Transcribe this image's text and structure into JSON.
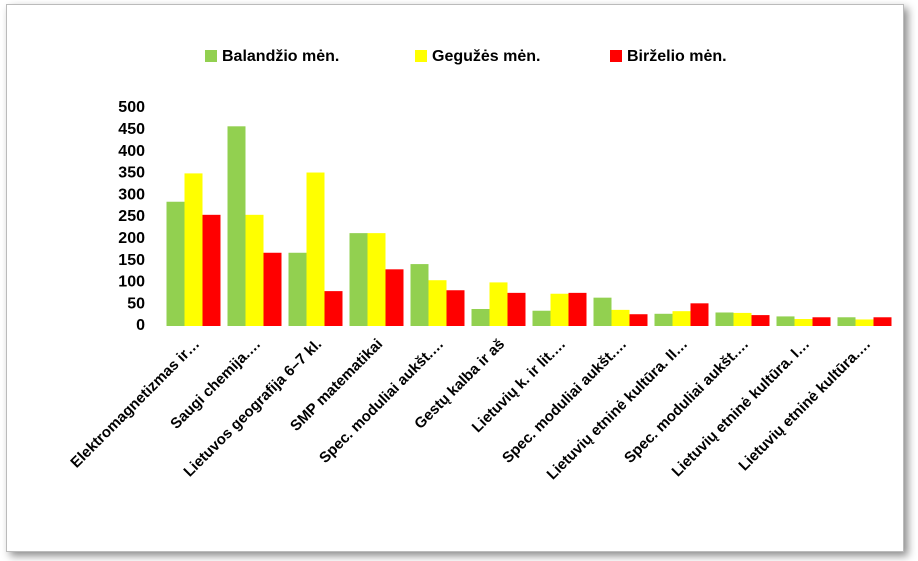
{
  "chart_data": {
    "type": "bar",
    "categories": [
      "Elektromagnetizmas ir…",
      "Saugi chemija.…",
      "Lietuvos geografija 6–7 kl.",
      "SMP matematikai",
      "Spec. moduliai aukšt.…",
      "Gestų kalba ir aš",
      "Lietuvių k. ir lit.…",
      "Spec. moduliai aukšt.…",
      "Lietuvių etninė kultūra. II…",
      "Spec. moduliai aukšt.…",
      "Lietuvių etninė kultūra. I…",
      "Lietuvių etninė kultūra.…"
    ],
    "series": [
      {
        "name": "Balandžio mėn.",
        "color": "#92d050",
        "values": [
          285,
          458,
          168,
          213,
          142,
          39,
          35,
          65,
          28,
          31,
          22,
          20
        ]
      },
      {
        "name": "Gegužės mėn.",
        "color": "#ffff00",
        "values": [
          350,
          255,
          352,
          213,
          105,
          100,
          74,
          37,
          34,
          30,
          16,
          15
        ]
      },
      {
        "name": "Birželio mėn.",
        "color": "#ff0000",
        "values": [
          255,
          168,
          80,
          130,
          82,
          76,
          76,
          27,
          52,
          25,
          20,
          20
        ]
      }
    ],
    "ylim": [
      0,
      500
    ],
    "yticks": [
      0,
      50,
      100,
      150,
      200,
      250,
      300,
      350,
      400,
      450,
      500
    ],
    "grid": false,
    "legend": "top"
  }
}
